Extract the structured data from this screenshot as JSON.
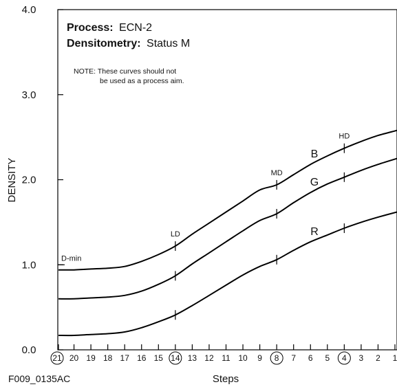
{
  "chart_data": {
    "type": "line",
    "xlabel": "Steps",
    "ylabel": "DENSITY",
    "x": [
      21,
      20,
      19,
      18,
      17,
      16,
      15,
      14,
      13,
      12,
      11,
      10,
      9,
      8,
      7,
      6,
      5,
      4,
      3,
      2,
      1
    ],
    "x_tick_labels": [
      "21",
      "20",
      "19",
      "18",
      "17",
      "16",
      "15",
      "14",
      "13",
      "12",
      "11",
      "10",
      "9",
      "8",
      "7",
      "6",
      "5",
      "4",
      "3",
      "2",
      "1"
    ],
    "circled_steps": [
      21,
      14,
      8,
      4
    ],
    "ylim": [
      0,
      4.0
    ],
    "y_ticks": [
      0.0,
      1.0,
      2.0,
      3.0,
      4.0
    ],
    "y_tick_labels": [
      "0.0",
      "1.0",
      "2.0",
      "3.0",
      "4.0"
    ],
    "series": [
      {
        "name": "B",
        "color": "#000000",
        "values": [
          0.94,
          0.94,
          0.95,
          0.96,
          0.98,
          1.04,
          1.12,
          1.22,
          1.36,
          1.49,
          1.62,
          1.75,
          1.88,
          1.94,
          2.06,
          2.18,
          2.28,
          2.37,
          2.45,
          2.52,
          2.58
        ]
      },
      {
        "name": "G",
        "color": "#000000",
        "values": [
          0.6,
          0.6,
          0.61,
          0.62,
          0.64,
          0.69,
          0.77,
          0.87,
          1.01,
          1.14,
          1.27,
          1.4,
          1.52,
          1.6,
          1.73,
          1.85,
          1.95,
          2.03,
          2.11,
          2.18,
          2.25
        ]
      },
      {
        "name": "R",
        "color": "#000000",
        "values": [
          0.17,
          0.17,
          0.18,
          0.19,
          0.21,
          0.26,
          0.33,
          0.41,
          0.52,
          0.64,
          0.76,
          0.88,
          0.98,
          1.06,
          1.17,
          1.27,
          1.35,
          1.43,
          1.5,
          1.56,
          1.62
        ]
      }
    ],
    "point_labels": [
      {
        "text": "LD",
        "step": 14,
        "series": "B"
      },
      {
        "text": "MD",
        "step": 8,
        "series": "B"
      },
      {
        "text": "HD",
        "step": 4,
        "series": "B"
      }
    ],
    "dmin": {
      "text": "D-min",
      "value": 1.0
    },
    "grid": false,
    "legend": "none"
  },
  "annotations": {
    "process_label": "Process:",
    "process_value": "ECN-2",
    "densitometry_label": "Densitometry:",
    "densitometry_value": "Status M",
    "note_line1": "NOTE: These curves should not",
    "note_line2": "be used as a process aim."
  },
  "figure_id": "F009_0135AC"
}
